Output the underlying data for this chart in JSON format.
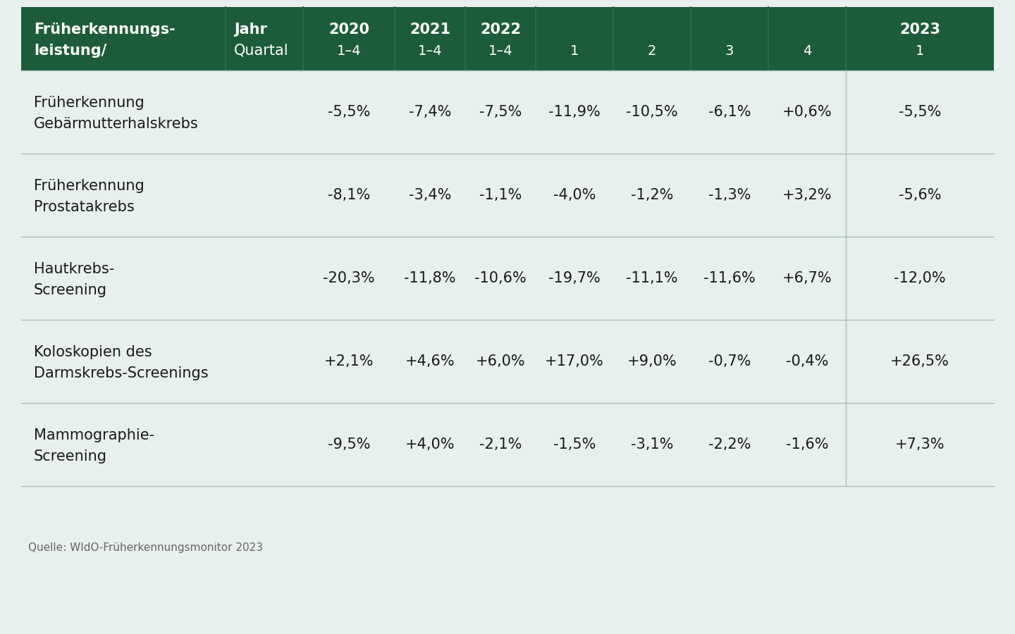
{
  "header_bg_color": "#1d5c3a",
  "header_text_color": "#ffffff",
  "body_bg_color": "#e8f0ed",
  "body_text_color": "#1a1a1a",
  "line_color": "#a8bfb8",
  "source_text": "Quelle: WIdO-Früherkennungsmonitor 2023",
  "col1_header_line1": "Früherkennungs-",
  "col1_header_line2": "leistung/",
  "col2_header_line1": "Jahr",
  "col2_header_line2": "Quartal",
  "year_headers": [
    "2020",
    "2021",
    "2022",
    "",
    "",
    "",
    "",
    "2023"
  ],
  "quarter_headers": [
    "1–4",
    "1–4",
    "1–4",
    "1",
    "2",
    "3",
    "4",
    "1"
  ],
  "rows": [
    {
      "label_line1": "Früherkennung",
      "label_line2": "Gebärmutterhalskrebs",
      "values": [
        "-5,5%",
        "-7,4%",
        "-7,5%",
        "-11,9%",
        "-10,5%",
        "-6,1%",
        "+0,6%",
        "-5,5%"
      ]
    },
    {
      "label_line1": "Früherkennung",
      "label_line2": "Prostatakrebs",
      "values": [
        "-8,1%",
        "-3,4%",
        "-1,1%",
        "-4,0%",
        "-1,2%",
        "-1,3%",
        "+3,2%",
        "-5,6%"
      ]
    },
    {
      "label_line1": "Hautkrebs-",
      "label_line2": "Screening",
      "values": [
        "-20,3%",
        "-11,8%",
        "-10,6%",
        "-19,7%",
        "-11,1%",
        "-11,6%",
        "+6,7%",
        "-12,0%"
      ]
    },
    {
      "label_line1": "Koloskopien des",
      "label_line2": "Darmskrebs-Screenings",
      "values": [
        "+2,1%",
        "+4,6%",
        "+6,0%",
        "+17,0%",
        "+9,0%",
        "-0,7%",
        "-0,4%",
        "+26,5%"
      ]
    },
    {
      "label_line1": "Mammographie-",
      "label_line2": "Screening",
      "values": [
        "-9,5%",
        "+4,0%",
        "-2,1%",
        "-1,5%",
        "-3,1%",
        "-2,2%",
        "-1,6%",
        "+7,3%"
      ]
    }
  ],
  "header_font_size": 15,
  "body_font_size": 15,
  "label_font_size": 15,
  "source_font_size": 11
}
